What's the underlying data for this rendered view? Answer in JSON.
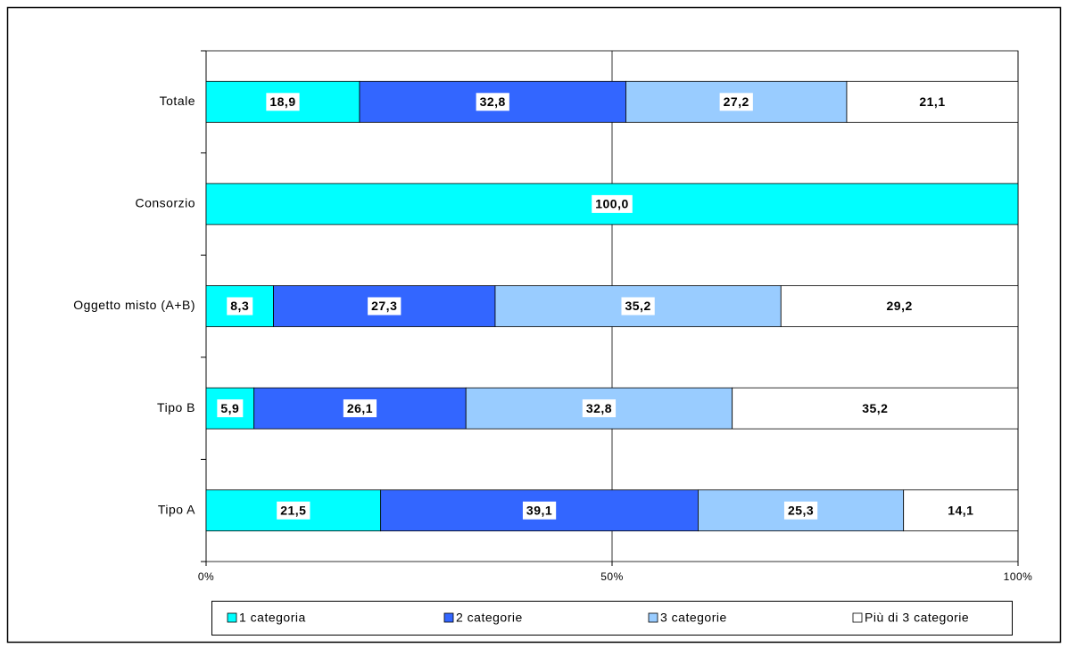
{
  "chart_data": {
    "type": "stacked-bar-horizontal",
    "categories": [
      "Totale",
      "Consorzio",
      "Oggetto misto (A+B)",
      "Tipo B",
      "Tipo A"
    ],
    "series": [
      {
        "name": "1 categoria",
        "color": "#00ffff",
        "values": [
          18.9,
          100.0,
          8.3,
          5.9,
          21.5
        ],
        "value_labels": [
          "18,9",
          "100,0",
          "8,3",
          "5,9",
          "21,5"
        ]
      },
      {
        "name": "2 categorie",
        "color": "#3366ff",
        "values": [
          32.8,
          null,
          27.3,
          26.1,
          39.1
        ],
        "value_labels": [
          "32,8",
          null,
          "27,3",
          "26,1",
          "39,1"
        ]
      },
      {
        "name": "3 categorie",
        "color": "#99ccff",
        "values": [
          27.2,
          null,
          35.2,
          32.8,
          25.3
        ],
        "value_labels": [
          "27,2",
          null,
          "35,2",
          "32,8",
          "25,3"
        ]
      },
      {
        "name": "Più di 3 categorie",
        "color": "#ffffff",
        "values": [
          21.1,
          null,
          29.2,
          35.2,
          14.1
        ],
        "value_labels": [
          "21,1",
          null,
          "29,2",
          "35,2",
          "14,1"
        ]
      }
    ],
    "xlim": [
      0,
      100
    ],
    "xticks": [
      {
        "value": 0,
        "label": "0%"
      },
      {
        "value": 50,
        "label": "50%"
      },
      {
        "value": 100,
        "label": "100%"
      }
    ],
    "grid": true,
    "legend": "bottom"
  }
}
